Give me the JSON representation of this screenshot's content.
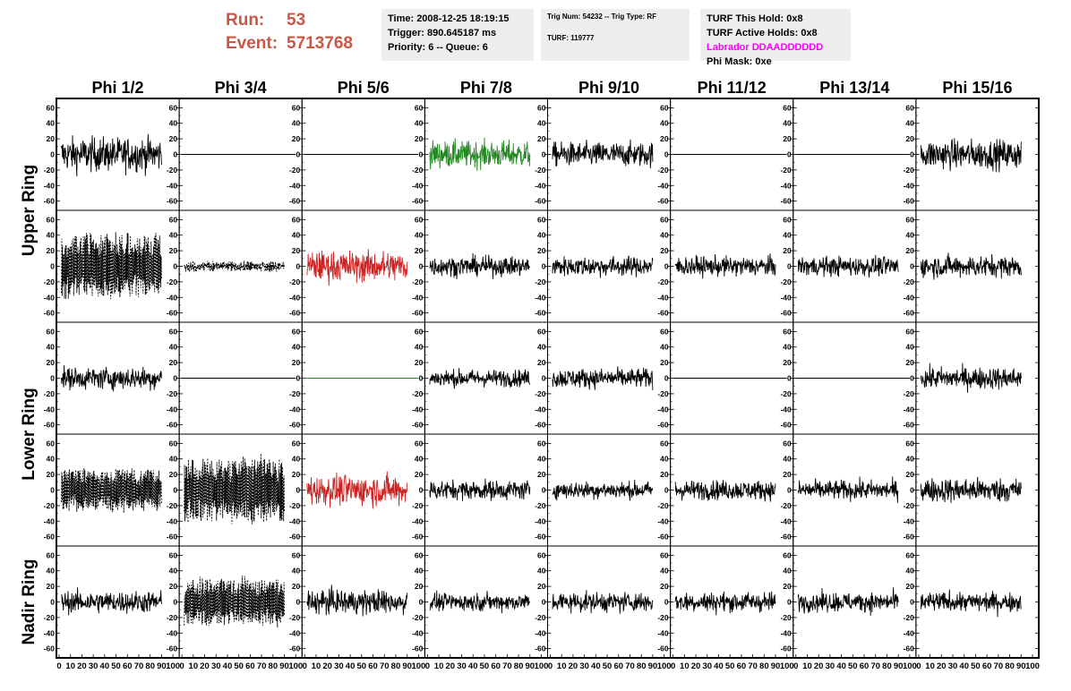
{
  "header": {
    "run_label": "Run:",
    "run_value": "53",
    "event_label": "Event:",
    "event_value": "5713768",
    "time": "Time: 2008-12-25 18:19:15",
    "trigger": "Trigger: 890.645187 ms",
    "priority": "Priority: 6 -- Queue: 6",
    "trig_num": "Trig Num: 54232 -- Trig Type: RF",
    "turf": "TURF: 119777",
    "turf_this_hold": "TURF This Hold: 0x8",
    "turf_active_holds": "TURF Active Holds: 0x8",
    "labrador": "Labrador DDAADDDDDD",
    "phi_mask": "Phi Mask: 0xe"
  },
  "columns": [
    "Phi 1/2",
    "Phi 3/4",
    "Phi 5/6",
    "Phi 7/8",
    "Phi 9/10",
    "Phi 11/12",
    "Phi 13/14",
    "Phi 15/16"
  ],
  "rings": [
    "Upper Ring",
    "Lower Ring",
    "Nadir Ring"
  ],
  "chart_data": {
    "type": "line",
    "x_axis": {
      "range": [
        0,
        100
      ],
      "ticks": [
        0,
        10,
        20,
        30,
        40,
        50,
        60,
        70,
        80,
        90,
        100
      ]
    },
    "y_axis": {
      "range": [
        -65,
        65
      ],
      "ticks": [
        -60,
        -40,
        -20,
        0,
        20,
        40,
        60
      ]
    },
    "trace_style": {
      "solid_black": "#000000",
      "green": "#228822",
      "red": "#cc2222",
      "dashed_black": "#000000"
    },
    "rows": [
      [
        "solid:28",
        "flat",
        "flat",
        "green:22",
        "solid:20",
        "flat",
        "flat",
        "solid:24"
      ],
      [
        "dashed:28",
        "dashed:3",
        "red:25",
        "solid:16",
        "solid:16",
        "solid:16",
        "solid:16",
        "solid:18"
      ],
      [
        "solid:18",
        "flat",
        "flat-green",
        "solid:14",
        "solid:16",
        "flat",
        "flat",
        "solid:18"
      ],
      [
        "dashed:18",
        "dashed:28",
        "red:25",
        "solid:16",
        "solid:14",
        "solid:16",
        "solid:16",
        "solid:20"
      ],
      [
        "solid:18",
        "dashed:20",
        "solid:20",
        "solid:14",
        "solid:16",
        "solid:16",
        "solid:16",
        "solid:16"
      ]
    ]
  }
}
